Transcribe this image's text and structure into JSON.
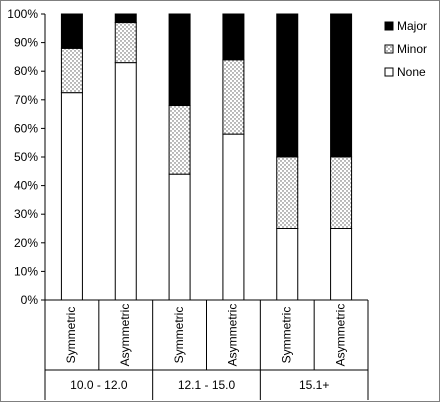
{
  "chart_data": {
    "type": "bar",
    "stacked": true,
    "percent": true,
    "categories": [
      "Symmetric",
      "Asymmetric",
      "Symmetric",
      "Asymmetric",
      "Symmetric",
      "Asymmetric"
    ],
    "groups": [
      {
        "label": "10.0 - 12.0",
        "count": 2
      },
      {
        "label": "12.1 - 15.0",
        "count": 2
      },
      {
        "label": "15.1+",
        "count": 2
      }
    ],
    "series": [
      {
        "name": "None",
        "values": [
          72.5,
          83,
          44,
          58,
          25,
          25
        ],
        "pattern": "blank"
      },
      {
        "name": "Minor",
        "values": [
          15.5,
          14,
          24,
          26,
          25,
          25
        ],
        "pattern": "dotted"
      },
      {
        "name": "Major",
        "values": [
          12,
          3,
          32,
          16,
          50,
          50
        ],
        "pattern": "solid"
      }
    ],
    "legend_order": [
      "Major",
      "Minor",
      "None"
    ],
    "legend_position": "right",
    "ylim": [
      0,
      100
    ],
    "yticks": [
      "0%",
      "10%",
      "20%",
      "30%",
      "40%",
      "50%",
      "60%",
      "70%",
      "80%",
      "90%",
      "100%"
    ],
    "grid": false,
    "colors": {
      "major": "#000000",
      "minor_dot": "#555555",
      "none": "#ffffff",
      "outline": "#000000",
      "frame": "#7f7f7f"
    }
  }
}
